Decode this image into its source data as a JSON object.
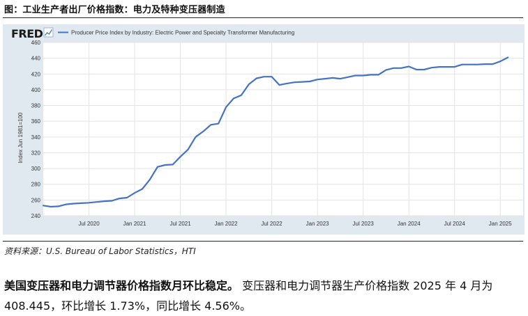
{
  "figure": {
    "title": "图：工业生产者出厂价格指数：电力及特种变压器制造",
    "source": "资料来源：U.S. Bureau of Labor Statistics，HTI"
  },
  "fred": {
    "logo": "FRED",
    "logo_icon": "chart-line-icon",
    "line_color": "#4472c4",
    "panel_color": "#e1e9f0"
  },
  "chart_data": {
    "type": "line",
    "title": "",
    "legend": "Producer Price Index by Industry: Electric Power and Specialty Transformer Manufacturing",
    "legend_position": "top-left",
    "ylabel": "Index Jun 1981=100",
    "xlabel": "",
    "ylim": [
      240,
      460
    ],
    "yticks": [
      240,
      260,
      280,
      300,
      320,
      340,
      360,
      380,
      400,
      420,
      440,
      460
    ],
    "grid": true,
    "xlim": [
      "2020-01",
      "2025-04"
    ],
    "xticks": [
      {
        "date": "2020-07",
        "label": "Jul 2020"
      },
      {
        "date": "2021-01",
        "label": "Jan 2021"
      },
      {
        "date": "2021-07",
        "label": "Jul 2021"
      },
      {
        "date": "2022-01",
        "label": "Jan 2022"
      },
      {
        "date": "2022-07",
        "label": "Jul 2022"
      },
      {
        "date": "2023-01",
        "label": "Jan 2023"
      },
      {
        "date": "2023-07",
        "label": "Jul 2023"
      },
      {
        "date": "2024-01",
        "label": "Jan 2024"
      },
      {
        "date": "2024-07",
        "label": "Jul 2024"
      },
      {
        "date": "2025-01",
        "label": "Jan 2025"
      }
    ],
    "series": [
      {
        "name": "Producer Price Index by Industry: Electric Power and Specialty Transformer Manufacturing",
        "color": "#4472c4",
        "points": [
          [
            "2020-01",
            253
          ],
          [
            "2020-02",
            251.5
          ],
          [
            "2020-03",
            252
          ],
          [
            "2020-04",
            254.5
          ],
          [
            "2020-05",
            255.5
          ],
          [
            "2020-06",
            256
          ],
          [
            "2020-07",
            256.5
          ],
          [
            "2020-08",
            257.5
          ],
          [
            "2020-09",
            258.5
          ],
          [
            "2020-10",
            259
          ],
          [
            "2020-11",
            262
          ],
          [
            "2020-12",
            263
          ],
          [
            "2021-01",
            269
          ],
          [
            "2021-02",
            274
          ],
          [
            "2021-03",
            286
          ],
          [
            "2021-04",
            302
          ],
          [
            "2021-05",
            304.5
          ],
          [
            "2021-06",
            305
          ],
          [
            "2021-07",
            315
          ],
          [
            "2021-08",
            324
          ],
          [
            "2021-09",
            340
          ],
          [
            "2021-10",
            347
          ],
          [
            "2021-11",
            355.5
          ],
          [
            "2021-12",
            357
          ],
          [
            "2022-01",
            378
          ],
          [
            "2022-02",
            389
          ],
          [
            "2022-03",
            393
          ],
          [
            "2022-04",
            407
          ],
          [
            "2022-05",
            414.5
          ],
          [
            "2022-06",
            416.5
          ],
          [
            "2022-07",
            416.5
          ],
          [
            "2022-08",
            406
          ],
          [
            "2022-09",
            408
          ],
          [
            "2022-10",
            409.5
          ],
          [
            "2022-11",
            410
          ],
          [
            "2022-12",
            410.5
          ],
          [
            "2023-01",
            413
          ],
          [
            "2023-02",
            414
          ],
          [
            "2023-03",
            415
          ],
          [
            "2023-04",
            414
          ],
          [
            "2023-05",
            416
          ],
          [
            "2023-06",
            418
          ],
          [
            "2023-07",
            418
          ],
          [
            "2023-08",
            419
          ],
          [
            "2023-09",
            419
          ],
          [
            "2023-10",
            425
          ],
          [
            "2023-11",
            427.5
          ],
          [
            "2023-12",
            427.5
          ],
          [
            "2024-01",
            429.5
          ],
          [
            "2024-02",
            425.5
          ],
          [
            "2024-03",
            425.5
          ],
          [
            "2024-04",
            428
          ],
          [
            "2024-05",
            429
          ],
          [
            "2024-06",
            429
          ],
          [
            "2024-07",
            429
          ],
          [
            "2024-08",
            432
          ],
          [
            "2024-09",
            432
          ],
          [
            "2024-10",
            432
          ],
          [
            "2024-11",
            432.5
          ],
          [
            "2024-12",
            432.5
          ],
          [
            "2025-01",
            436
          ],
          [
            "2025-02",
            441
          ]
        ]
      }
    ]
  },
  "paragraph": {
    "lead": "美国变压器和电力调节器价格指数月环比稳定。",
    "body": "变压器和电力调节器生产价格指数 2025 年 4 月为 408.445，环比增长 1.73%，同比增长 4.56%。"
  }
}
